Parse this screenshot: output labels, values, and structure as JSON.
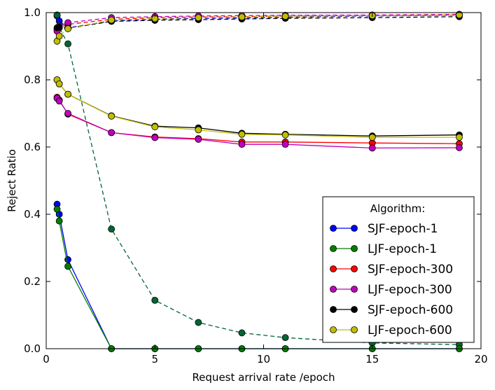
{
  "chart_data": {
    "type": "line",
    "xlabel": "Request arrival rate /epoch",
    "ylabel": "Reject Ratio",
    "xlim": [
      0,
      20
    ],
    "ylim": [
      0,
      1.0
    ],
    "x_ticks": [
      "0",
      "5",
      "10",
      "15",
      "20"
    ],
    "y_ticks": [
      "0.0",
      "0.2",
      "0.4",
      "0.6",
      "0.8",
      "1.0"
    ],
    "grid": false,
    "legend": {
      "title": "Algorithm:",
      "placement": "lower-right"
    },
    "series": [
      {
        "name": "SJF-epoch-1",
        "color": "#0000ff",
        "style": "solid",
        "in_legend": true,
        "x": [
          0.5,
          0.6,
          1,
          3,
          5,
          7,
          9,
          11,
          15,
          19
        ],
        "y": [
          0.43,
          0.4,
          0.265,
          0.0,
          0.0,
          0.0,
          0.0,
          0.0,
          0.0,
          0.0
        ]
      },
      {
        "name": "LJF-epoch-1",
        "color": "#008000",
        "style": "solid",
        "in_legend": true,
        "x": [
          0.5,
          0.6,
          1,
          3,
          5,
          7,
          9,
          11,
          15,
          19
        ],
        "y": [
          0.415,
          0.38,
          0.245,
          0.0,
          0.0,
          0.0,
          0.0,
          0.0,
          0.0,
          0.0
        ]
      },
      {
        "name": "SJF-epoch-300",
        "color": "#ff0000",
        "style": "solid",
        "in_legend": true,
        "x": [
          0.5,
          0.6,
          1,
          3,
          5,
          7,
          9,
          11,
          15,
          19
        ],
        "y": [
          0.748,
          0.74,
          0.698,
          0.643,
          0.63,
          0.625,
          0.615,
          0.615,
          0.612,
          0.61
        ]
      },
      {
        "name": "LJF-epoch-300",
        "color": "#bf00bf",
        "style": "solid",
        "in_legend": true,
        "x": [
          0.5,
          0.6,
          1,
          3,
          5,
          7,
          9,
          11,
          15,
          19
        ],
        "y": [
          0.745,
          0.737,
          0.7,
          0.643,
          0.628,
          0.623,
          0.608,
          0.608,
          0.597,
          0.598
        ]
      },
      {
        "name": "SJF-epoch-600",
        "color": "#000000",
        "style": "solid",
        "in_legend": true,
        "x": [
          0.5,
          0.6,
          1,
          3,
          5,
          7,
          9,
          11,
          15,
          19
        ],
        "y": [
          0.8,
          0.788,
          0.757,
          0.693,
          0.662,
          0.657,
          0.641,
          0.638,
          0.633,
          0.636
        ]
      },
      {
        "name": "LJF-epoch-600",
        "color": "#bfbf00",
        "style": "solid",
        "in_legend": true,
        "x": [
          0.5,
          0.6,
          1,
          3,
          5,
          7,
          9,
          11,
          15,
          19
        ],
        "y": [
          0.8,
          0.788,
          0.757,
          0.692,
          0.66,
          0.651,
          0.638,
          0.636,
          0.629,
          0.629
        ]
      },
      {
        "color": "#0000ff",
        "style": "dashed",
        "in_legend": false,
        "x": [
          0.5,
          0.6,
          1,
          3,
          5,
          7,
          9,
          11,
          15,
          19
        ],
        "y": [
          0.99,
          0.975,
          0.955,
          0.975,
          0.98,
          0.983,
          0.984,
          0.986,
          0.99,
          0.992
        ]
      },
      {
        "color": "#006633",
        "style": "dashed",
        "in_legend": false,
        "x": [
          0.5,
          0.6,
          1,
          3,
          5,
          7,
          9,
          11,
          15,
          19
        ],
        "y": [
          0.993,
          0.955,
          0.907,
          0.356,
          0.144,
          0.078,
          0.047,
          0.033,
          0.017,
          0.012
        ]
      },
      {
        "color": "#ff0000",
        "style": "dashed",
        "in_legend": false,
        "x": [
          0.5,
          0.6,
          1,
          3,
          5,
          7,
          9,
          11,
          15,
          19
        ],
        "y": [
          0.95,
          0.955,
          0.965,
          0.98,
          0.985,
          0.987,
          0.988,
          0.99,
          0.991,
          0.993
        ]
      },
      {
        "color": "#bf00bf",
        "style": "dashed",
        "in_legend": false,
        "x": [
          0.5,
          0.6,
          1,
          3,
          5,
          7,
          9,
          11,
          15,
          19
        ],
        "y": [
          0.945,
          0.96,
          0.97,
          0.985,
          0.988,
          0.99,
          0.991,
          0.992,
          0.993,
          0.995
        ]
      },
      {
        "color": "#000000",
        "style": "dashed",
        "in_legend": false,
        "x": [
          0.5,
          0.6,
          1,
          3,
          5,
          7,
          9,
          11,
          15,
          19
        ],
        "y": [
          0.955,
          0.957,
          0.953,
          0.974,
          0.977,
          0.979,
          0.981,
          0.983,
          0.985,
          0.988
        ]
      },
      {
        "color": "#bfbf00",
        "style": "dashed",
        "in_legend": false,
        "x": [
          0.5,
          0.6,
          1,
          3,
          5,
          7,
          9,
          11,
          15,
          19
        ],
        "y": [
          0.915,
          0.93,
          0.952,
          0.978,
          0.982,
          0.985,
          0.987,
          0.989,
          0.991,
          0.993
        ]
      }
    ]
  }
}
